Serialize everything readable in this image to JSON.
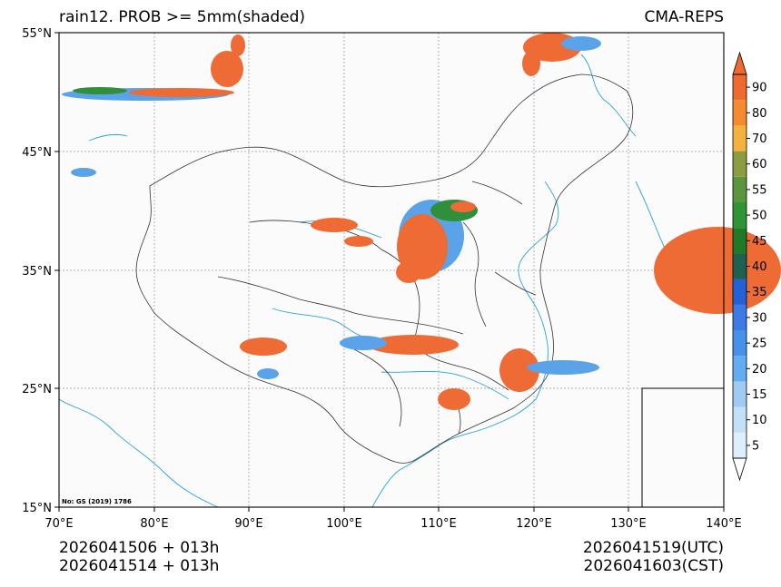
{
  "title": {
    "left": "rain12. PROB >= 5mm(shaded)",
    "right": "CMA-REPS"
  },
  "axes": {
    "lat_labels": [
      "55°N",
      "45°N",
      "35°N",
      "25°N",
      "15°N"
    ],
    "lon_labels": [
      "70°E",
      "80°E",
      "90°E",
      "100°E",
      "110°E",
      "120°E",
      "130°E",
      "140°E"
    ]
  },
  "colorbar": {
    "levels": [
      "5",
      "10",
      "15",
      "20",
      "25",
      "30",
      "35",
      "40",
      "45",
      "50",
      "55",
      "60",
      "70",
      "80",
      "90"
    ],
    "colors": [
      "#ddeefc",
      "#c4e0f7",
      "#9fcbf2",
      "#62acf2",
      "#4791ea",
      "#3d7ae6",
      "#2262d8",
      "#1e6152",
      "#1f7a27",
      "#2f9436",
      "#5b963f",
      "#8c9c41",
      "#f3b23d",
      "#f58a2e",
      "#ef6a2e"
    ]
  },
  "map_colors": {
    "coast": "#2aa3d8",
    "border": "#333333",
    "grid": "#999999",
    "high": "#ee6b35",
    "mid": "#2f8f3a",
    "low": "#5aa3e8"
  },
  "license": "No: GS (2019) 1786",
  "footer": {
    "init_utc": "2026041506  +  013h",
    "init_cst": "2026041514  +  013h",
    "valid_utc": "2026041519(UTC)",
    "valid_cst": "2026041603(CST)"
  }
}
